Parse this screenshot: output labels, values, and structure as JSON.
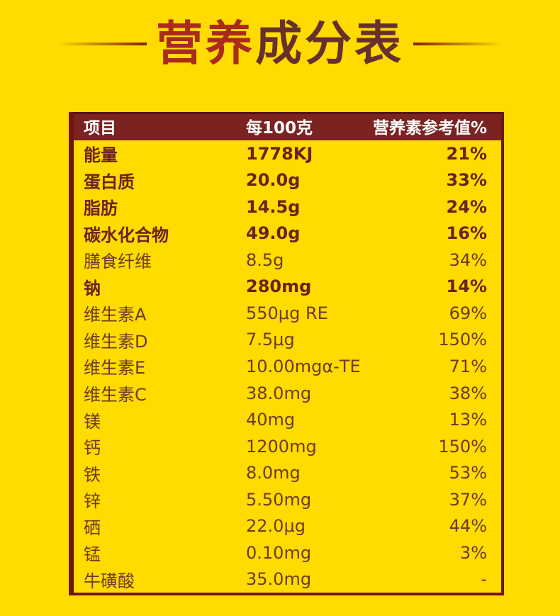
{
  "colors": {
    "background": "#FFDB00",
    "header_bg": "#7A2321",
    "header_top_edge": "#5A1110",
    "table_border": "#701512",
    "bold_row_text": "#6E211C",
    "light_row_text": "#6E3A22",
    "header_text": "#FFFFFF",
    "title_part1": "#AB2A1E",
    "title_part2": "#67302D",
    "divider_line": "#8A2410"
  },
  "title": {
    "full": "营养成分表",
    "part1": "营养",
    "part2": "成分表"
  },
  "table": {
    "headers": [
      "项目",
      "每100克",
      "营养素参考值%"
    ],
    "rows": [
      {
        "name": "能量",
        "value": "1778KJ",
        "nrv": "21%",
        "bold": true
      },
      {
        "name": "蛋白质",
        "value": "20.0g",
        "nrv": "33%",
        "bold": true
      },
      {
        "name": "脂肪",
        "value": "14.5g",
        "nrv": "24%",
        "bold": true
      },
      {
        "name": "碳水化合物",
        "value": "49.0g",
        "nrv": "16%",
        "bold": true
      },
      {
        "name": "膳食纤维",
        "value": "8.5g",
        "nrv": "34%",
        "bold": false
      },
      {
        "name": "钠",
        "value": "280mg",
        "nrv": "14%",
        "bold": true
      },
      {
        "name": "维生素A",
        "value": "550μg RE",
        "nrv": "69%",
        "bold": false
      },
      {
        "name": "维生素D",
        "value": "7.5μg",
        "nrv": "150%",
        "bold": false
      },
      {
        "name": "维生素E",
        "value": "10.00mgα-TE",
        "nrv": "71%",
        "bold": false
      },
      {
        "name": "维生素C",
        "value": "38.0mg",
        "nrv": "38%",
        "bold": false
      },
      {
        "name": "镁",
        "value": "40mg",
        "nrv": "13%",
        "bold": false
      },
      {
        "name": "钙",
        "value": "1200mg",
        "nrv": "150%",
        "bold": false
      },
      {
        "name": "铁",
        "value": "8.0mg",
        "nrv": "53%",
        "bold": false
      },
      {
        "name": "锌",
        "value": "5.50mg",
        "nrv": "37%",
        "bold": false
      },
      {
        "name": "硒",
        "value": "22.0μg",
        "nrv": "44%",
        "bold": false
      },
      {
        "name": "锰",
        "value": "0.10mg",
        "nrv": "3%",
        "bold": false
      },
      {
        "name": "牛磺酸",
        "value": "35.0mg",
        "nrv": "-",
        "bold": false
      }
    ]
  }
}
